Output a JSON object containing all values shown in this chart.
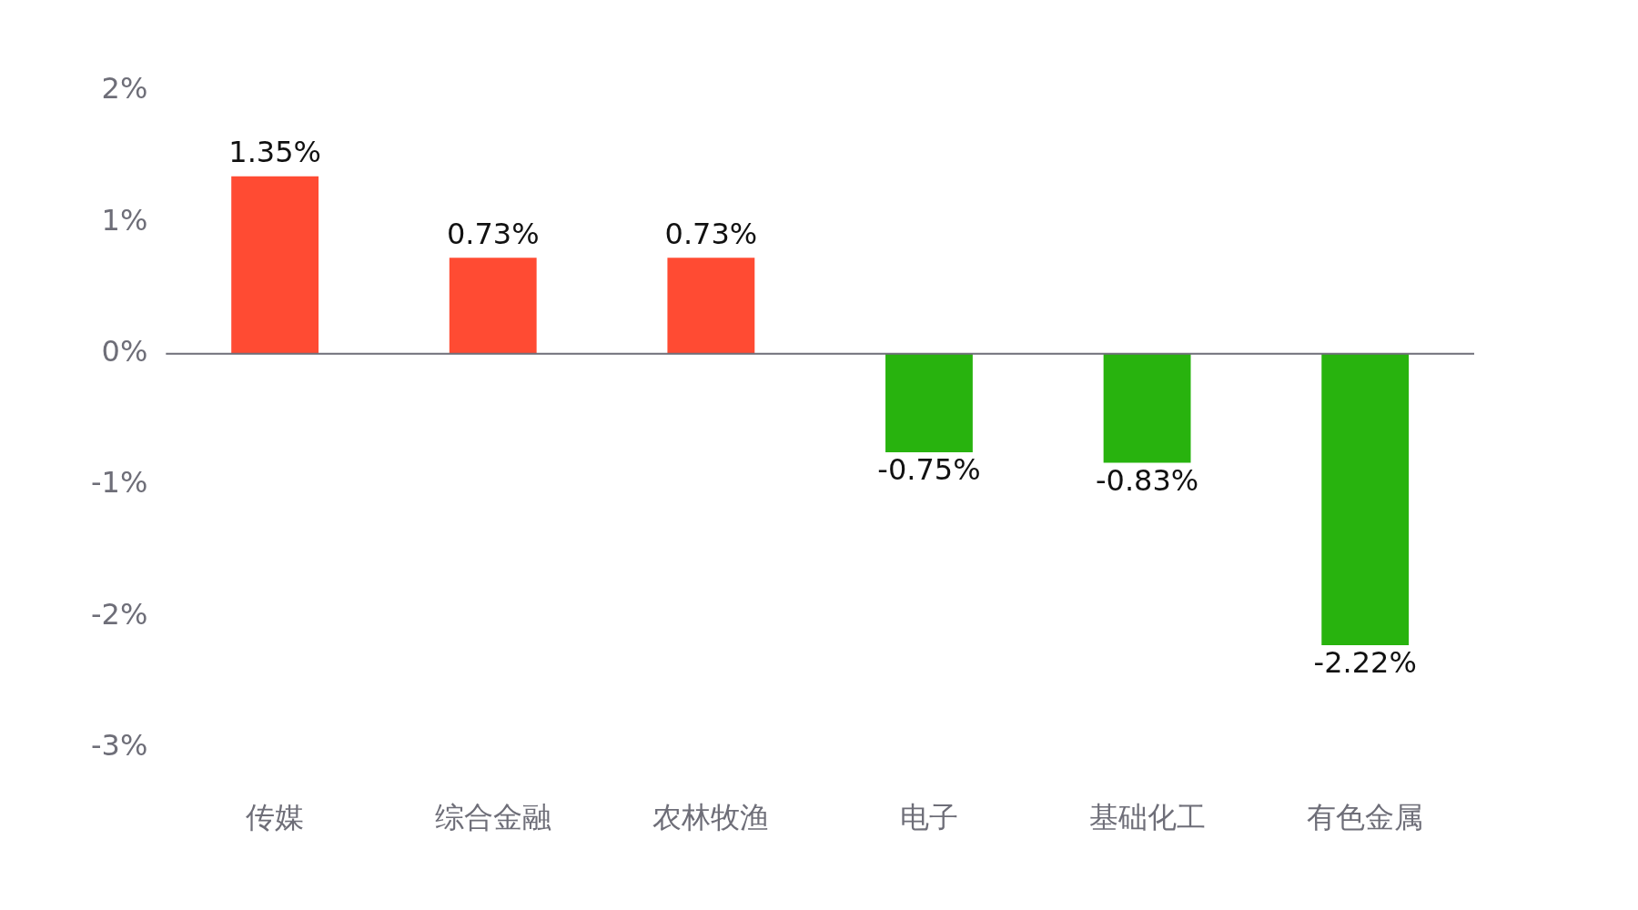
{
  "chart_data": {
    "type": "bar",
    "categories": [
      "传媒",
      "综合金融",
      "农林牧渔",
      "电子",
      "基础化工",
      "有色金属"
    ],
    "values": [
      1.35,
      0.73,
      0.73,
      -0.75,
      -0.83,
      -2.22
    ],
    "colors": [
      "#ff4b33",
      "#ff4b33",
      "#ff4b33",
      "#28b30e",
      "#28b30e",
      "#28b30e"
    ],
    "value_labels": [
      "1.35%",
      "0.73%",
      "0.73%",
      "-0.75%",
      "-0.83%",
      "-2.22%"
    ],
    "ylim": [
      -3,
      2
    ],
    "yticks": [
      {
        "value": 2,
        "label": "2%"
      },
      {
        "value": 1,
        "label": "1%"
      },
      {
        "value": 0,
        "label": "0%"
      },
      {
        "value": -1,
        "label": "-1%"
      },
      {
        "value": -2,
        "label": "-2%"
      },
      {
        "value": -3,
        "label": "-3%"
      }
    ],
    "ref_lines": [
      {
        "axis": "y",
        "value": 0,
        "color": "#6e6e78"
      }
    ],
    "grid": false,
    "legend": false
  }
}
